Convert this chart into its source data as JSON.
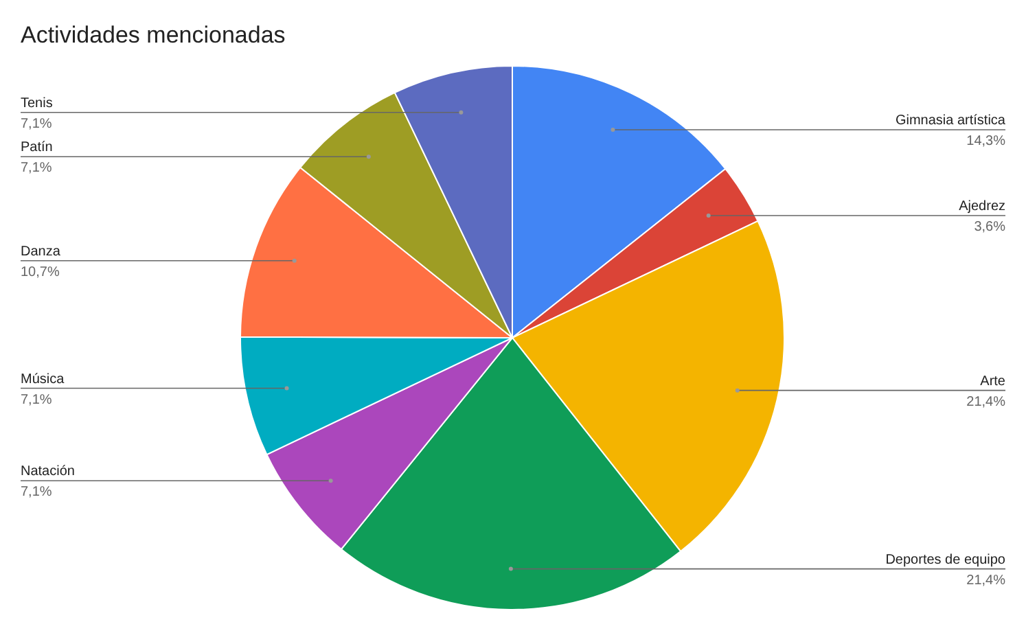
{
  "chart_data": {
    "type": "pie",
    "title": "Actividades mencionadas",
    "categories": [
      "Gimnasia artística",
      "Ajedrez",
      "Arte",
      "Deportes de equipo",
      "Natación",
      "Música",
      "Danza",
      "Patín",
      "Tenis"
    ],
    "values": [
      14.3,
      3.6,
      21.4,
      21.4,
      7.1,
      7.1,
      10.7,
      7.1,
      7.1
    ],
    "value_labels": [
      "14,3%",
      "3,6%",
      "21,4%",
      "21,4%",
      "7,1%",
      "7,1%",
      "10,7%",
      "7,1%",
      "7,1%"
    ],
    "colors": [
      "#4285f4",
      "#db4437",
      "#f4b400",
      "#0f9d58",
      "#ab47bc",
      "#00acc1",
      "#ff7043",
      "#9e9d24",
      "#5c6bc0"
    ]
  }
}
